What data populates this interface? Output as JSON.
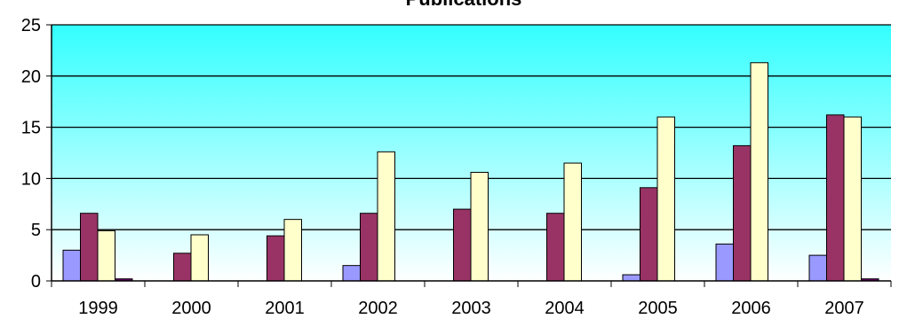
{
  "chart_data": {
    "type": "bar",
    "title": "Publications",
    "xlabel": "",
    "ylabel": "",
    "ylim": [
      0,
      25
    ],
    "yticks": [
      0,
      5,
      10,
      15,
      20,
      25
    ],
    "grid": true,
    "legend": "none",
    "categories": [
      "1999",
      "2000",
      "2001",
      "2002",
      "2003",
      "2004",
      "2005",
      "2006",
      "2007"
    ],
    "series": [
      {
        "color": "#9999ff",
        "values": [
          3.0,
          0,
          0,
          1.5,
          0,
          0,
          0.6,
          3.6,
          2.5
        ]
      },
      {
        "color": "#993366",
        "values": [
          6.6,
          2.7,
          4.4,
          6.6,
          7.0,
          6.6,
          9.1,
          13.2,
          16.2
        ]
      },
      {
        "color": "#ffffcc",
        "values": [
          4.9,
          4.5,
          6.0,
          12.6,
          10.6,
          11.5,
          16.0,
          21.3,
          16.0
        ]
      },
      {
        "color": "#660066",
        "values": [
          0.2,
          0,
          0,
          0,
          0,
          0,
          0,
          0,
          0.2
        ]
      }
    ],
    "plot_background": {
      "top": "#33ffff",
      "bottom": "#ffffff"
    }
  }
}
